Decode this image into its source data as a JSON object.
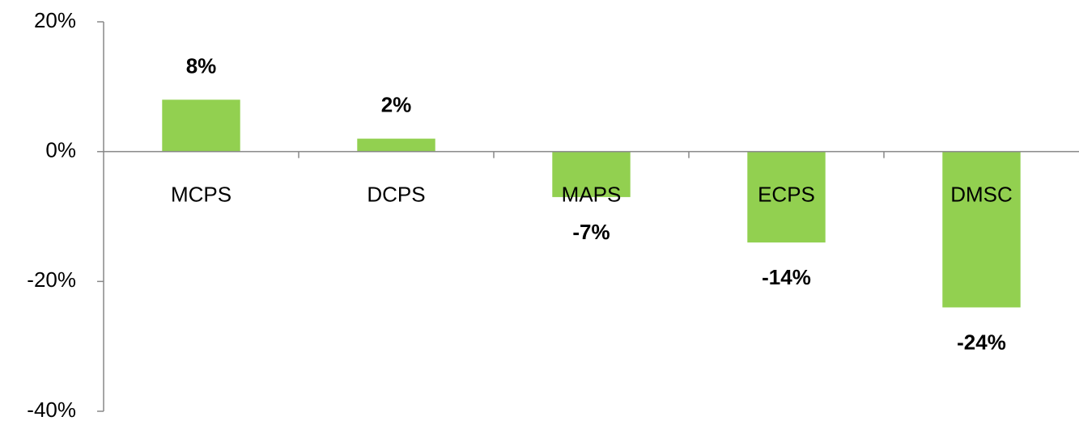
{
  "chart_data": {
    "type": "bar",
    "categories": [
      "MCPS",
      "DCPS",
      "MAPS",
      "ECPS",
      "DMSC"
    ],
    "values": [
      8,
      2,
      -7,
      -14,
      -24
    ],
    "value_labels": [
      "8%",
      "2%",
      "-7%",
      "-14%",
      "-24%"
    ],
    "color": "#92d050",
    "ylim": [
      -40,
      20
    ],
    "yticks": [
      {
        "value": -40,
        "label": "-40%"
      },
      {
        "value": -20,
        "label": "-20%"
      },
      {
        "value": 0,
        "label": "0%"
      },
      {
        "value": 20,
        "label": "20%"
      }
    ],
    "grid": false
  }
}
